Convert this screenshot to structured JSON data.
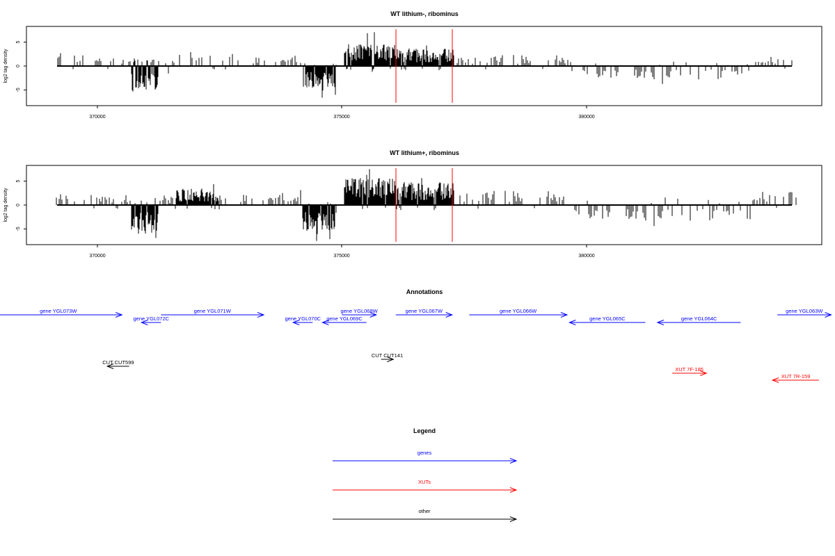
{
  "colors": {
    "genes": "#0000ff",
    "xuts": "#ff0000",
    "other": "#000000",
    "marker": "#ff0000"
  },
  "chart_data": [
    {
      "type": "bar",
      "id": "panel-lithium-minus",
      "title": "WT lithium-, ribominus",
      "ylabel": "log2 tag density",
      "xlabel": "",
      "xlim": [
        368300,
        384800
      ],
      "ylim": [
        -8,
        8
      ],
      "xticks": [
        370000,
        375000,
        380000
      ],
      "yticks": [
        -5,
        0,
        5
      ],
      "ytick_labels": [
        "-5",
        "0",
        "5"
      ],
      "xtick_labels": [
        "370000",
        "375000",
        "380000"
      ],
      "markers": [
        376100,
        377250
      ],
      "regions": [
        [
          369100,
          369900,
          2.4,
          0.3
        ],
        [
          369900,
          370700,
          1.6,
          0.2
        ],
        [
          370700,
          371250,
          1.2,
          -4.5
        ],
        [
          371250,
          371600,
          1.0,
          -1.2
        ],
        [
          371600,
          372500,
          2.6,
          0.2
        ],
        [
          372500,
          374200,
          2.2,
          0.3
        ],
        [
          374200,
          374900,
          0.5,
          -3.8
        ],
        [
          374900,
          375050,
          0.3,
          -0.3
        ],
        [
          375050,
          376100,
          4.0,
          0.3
        ],
        [
          376100,
          377300,
          3.2,
          0.4
        ],
        [
          377300,
          377800,
          1.6,
          0.2
        ],
        [
          377800,
          379700,
          2.0,
          0.3
        ],
        [
          379700,
          383400,
          0.8,
          -2.4
        ],
        [
          383400,
          384300,
          1.8,
          0.3
        ]
      ]
    },
    {
      "type": "bar",
      "id": "panel-lithium-plus",
      "title": "WT lithium+, ribominus",
      "ylabel": "log2 tag density",
      "xlabel": "",
      "xlim": [
        368300,
        384800
      ],
      "ylim": [
        -8,
        8
      ],
      "xticks": [
        370000,
        375000,
        380000
      ],
      "yticks": [
        -5,
        0,
        5
      ],
      "ytick_labels": [
        "-5",
        "0",
        "5"
      ],
      "xtick_labels": [
        "370000",
        "375000",
        "380000"
      ],
      "markers": [
        376100,
        377250
      ],
      "regions": [
        [
          369100,
          369900,
          2.0,
          0.4
        ],
        [
          369900,
          370700,
          1.8,
          0.3
        ],
        [
          370700,
          371250,
          1.4,
          -5.0
        ],
        [
          371250,
          371600,
          1.5,
          -1.0
        ],
        [
          371600,
          372500,
          3.0,
          0.4
        ],
        [
          372500,
          374200,
          2.6,
          0.5
        ],
        [
          374200,
          374900,
          0.6,
          -4.5
        ],
        [
          374900,
          375050,
          0.3,
          -0.4
        ],
        [
          375050,
          376100,
          5.0,
          0.4
        ],
        [
          376100,
          377300,
          4.2,
          0.6
        ],
        [
          377300,
          377800,
          2.2,
          0.4
        ],
        [
          377800,
          379700,
          2.6,
          0.4
        ],
        [
          379700,
          383400,
          1.4,
          -2.8
        ],
        [
          383400,
          384300,
          2.6,
          0.5
        ]
      ]
    }
  ],
  "annotations": {
    "title": "Annotations",
    "items": [
      {
        "label": "gene YGL073W",
        "kind": "genes",
        "start": 367900,
        "end": 370500,
        "strand": "+",
        "row": 0
      },
      {
        "label": "gene YGL072C",
        "kind": "genes",
        "start": 370900,
        "end": 371300,
        "strand": "-",
        "row": 1
      },
      {
        "label": "gene YGL071W",
        "kind": "genes",
        "start": 371300,
        "end": 373400,
        "strand": "+",
        "row": 0
      },
      {
        "label": "gene YGL070C",
        "kind": "genes",
        "start": 374000,
        "end": 374400,
        "strand": "-",
        "row": 1
      },
      {
        "label": "gene YGL069C",
        "kind": "genes",
        "start": 374600,
        "end": 375500,
        "strand": "-",
        "row": 1
      },
      {
        "label": "gene YGL068W",
        "kind": "genes",
        "start": 375000,
        "end": 375700,
        "strand": "+",
        "row": 0
      },
      {
        "label": "gene YGL067W",
        "kind": "genes",
        "start": 376100,
        "end": 377250,
        "strand": "+",
        "row": 0
      },
      {
        "label": "gene YGL066W",
        "kind": "genes",
        "start": 377600,
        "end": 379600,
        "strand": "+",
        "row": 0
      },
      {
        "label": "gene YGL065C",
        "kind": "genes",
        "start": 379650,
        "end": 381200,
        "strand": "-",
        "row": 1
      },
      {
        "label": "gene YGL064C",
        "kind": "genes",
        "start": 381450,
        "end": 383150,
        "strand": "-",
        "row": 1
      },
      {
        "label": "gene YGL063W",
        "kind": "genes",
        "start": 383900,
        "end": 385000,
        "strand": "+",
        "row": 0
      },
      {
        "label": "CUT CUT599",
        "kind": "other",
        "start": 370200,
        "end": 370650,
        "strand": "-",
        "row": 3
      },
      {
        "label": "CUT CUT141",
        "kind": "other",
        "start": 375800,
        "end": 376050,
        "strand": "+",
        "row": 2
      },
      {
        "label": "XUT 7F-185",
        "kind": "xuts",
        "start": 381750,
        "end": 382450,
        "strand": "+",
        "row": 4
      },
      {
        "label": "XUT 7R-159",
        "kind": "xuts",
        "start": 383800,
        "end": 384750,
        "strand": "-",
        "row": 5
      }
    ]
  },
  "legend": {
    "title": "Legend",
    "items": [
      {
        "label": "genes",
        "kind": "genes"
      },
      {
        "label": "XUTs",
        "kind": "xuts"
      },
      {
        "label": "other",
        "kind": "other"
      }
    ]
  }
}
